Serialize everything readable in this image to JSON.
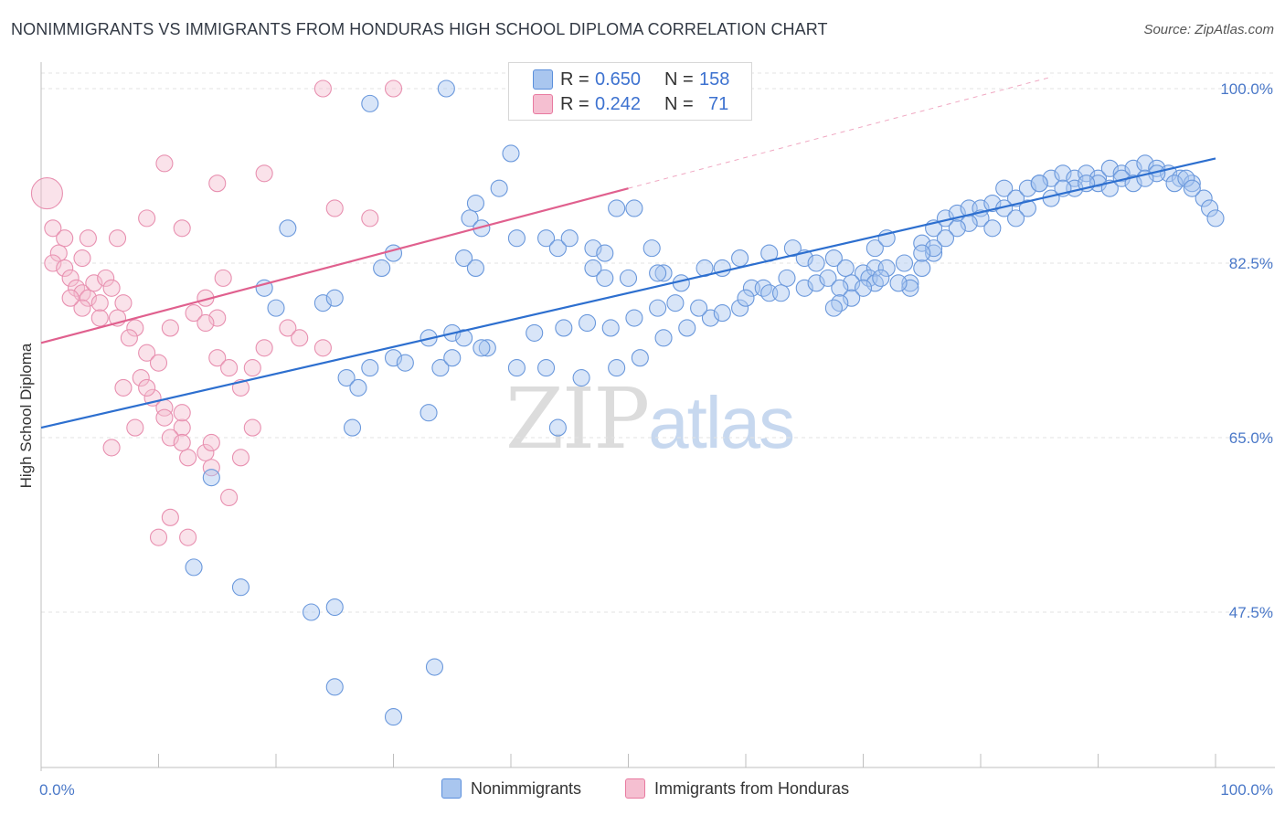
{
  "header": {
    "title": "NONIMMIGRANTS VS IMMIGRANTS FROM HONDURAS HIGH SCHOOL DIPLOMA CORRELATION CHART",
    "source": "Source: ZipAtlas.com"
  },
  "watermark": {
    "zip": "ZIP",
    "atlas": "atlas"
  },
  "legend_top": {
    "rows": [
      {
        "r_label": "R = ",
        "r_value": "0.650",
        "n_label": "N = ",
        "n_value": "158"
      },
      {
        "r_label": "R = ",
        "r_value": "0.242",
        "n_label": "N = ",
        "n_value": "71"
      }
    ]
  },
  "chart_data": {
    "type": "scatter",
    "title": "NONIMMIGRANTS VS IMMIGRANTS FROM HONDURAS HIGH SCHOOL DIPLOMA CORRELATION CHART",
    "xlabel": "",
    "ylabel": "High School Diploma",
    "x_ticks": [
      "0.0%",
      "100.0%"
    ],
    "y_ticks": [
      "100.0%",
      "82.5%",
      "65.0%",
      "47.5%"
    ],
    "y_tick_values": [
      100.0,
      82.5,
      65.0,
      47.5
    ],
    "xlim": [
      0,
      100
    ],
    "ylim": [
      31.5,
      102
    ],
    "grid": true,
    "colors": {
      "blue": "#5b8fdc",
      "blue_fill": "#a9c6ef",
      "pink": "#e87aa0",
      "pink_fill": "#f5bfd1",
      "blue_line": "#2d6fcf",
      "pink_line": "#e0608e"
    },
    "series": [
      {
        "name": "Nonimmigrants",
        "color": "#5b8fdc",
        "R": 0.65,
        "N": 158,
        "trend": {
          "x0": 0,
          "y0": 66.0,
          "x1": 100,
          "y1": 93.0
        },
        "points": [
          [
            34.5,
            100
          ],
          [
            28,
            98.5
          ],
          [
            40,
            93.5
          ],
          [
            39,
            90
          ],
          [
            37,
            88.5
          ],
          [
            36.5,
            87
          ],
          [
            37.5,
            86
          ],
          [
            49,
            88
          ],
          [
            50.5,
            88
          ],
          [
            21,
            86
          ],
          [
            30,
            83.5
          ],
          [
            36,
            83
          ],
          [
            29,
            82
          ],
          [
            37,
            82
          ],
          [
            40.5,
            85
          ],
          [
            43,
            85
          ],
          [
            44,
            84
          ],
          [
            45,
            85
          ],
          [
            47,
            84
          ],
          [
            48,
            83.5
          ],
          [
            52,
            84
          ],
          [
            50,
            81
          ],
          [
            53,
            81.5
          ],
          [
            52.5,
            81.5
          ],
          [
            47,
            82
          ],
          [
            48,
            81
          ],
          [
            54.5,
            80.5
          ],
          [
            56.5,
            82
          ],
          [
            58,
            82
          ],
          [
            59.5,
            83
          ],
          [
            62,
            83.5
          ],
          [
            64,
            84
          ],
          [
            65,
            83
          ],
          [
            66,
            82.5
          ],
          [
            67.5,
            83
          ],
          [
            68.5,
            82
          ],
          [
            70,
            81.5
          ],
          [
            71,
            82
          ],
          [
            69,
            80.5
          ],
          [
            70.5,
            81
          ],
          [
            63.5,
            81
          ],
          [
            60.5,
            80
          ],
          [
            61.5,
            80
          ],
          [
            62,
            79.5
          ],
          [
            63,
            79.5
          ],
          [
            65,
            80
          ],
          [
            66,
            80.5
          ],
          [
            67,
            81
          ],
          [
            68,
            80
          ],
          [
            71,
            80.5
          ],
          [
            72,
            82
          ],
          [
            73.5,
            82.5
          ],
          [
            75,
            82
          ],
          [
            76,
            83.5
          ],
          [
            74,
            80.5
          ],
          [
            74,
            80
          ],
          [
            73,
            80.5
          ],
          [
            71.5,
            81
          ],
          [
            70,
            80
          ],
          [
            69,
            79
          ],
          [
            68,
            78.5
          ],
          [
            67.5,
            78
          ],
          [
            71,
            84
          ],
          [
            72,
            85
          ],
          [
            75,
            84.5
          ],
          [
            76,
            86
          ],
          [
            77,
            87
          ],
          [
            78,
            87.5
          ],
          [
            79,
            88
          ],
          [
            80,
            88
          ],
          [
            81,
            88.5
          ],
          [
            82,
            90
          ],
          [
            83,
            89
          ],
          [
            84,
            90
          ],
          [
            85,
            90.5
          ],
          [
            86,
            91
          ],
          [
            87,
            91.5
          ],
          [
            88,
            91
          ],
          [
            89,
            91.5
          ],
          [
            90,
            91
          ],
          [
            91,
            92
          ],
          [
            92,
            91.5
          ],
          [
            93,
            92
          ],
          [
            94,
            92.5
          ],
          [
            95,
            92
          ],
          [
            96,
            91.5
          ],
          [
            97,
            91
          ],
          [
            98,
            90.5
          ],
          [
            99,
            89
          ],
          [
            99.5,
            88
          ],
          [
            100,
            87
          ],
          [
            86,
            89
          ],
          [
            84,
            88
          ],
          [
            82,
            88
          ],
          [
            80,
            87
          ],
          [
            79,
            86.5
          ],
          [
            78,
            86
          ],
          [
            77,
            85
          ],
          [
            76,
            84
          ],
          [
            75,
            83.5
          ],
          [
            83,
            87
          ],
          [
            81,
            86
          ],
          [
            88,
            90
          ],
          [
            90,
            90.5
          ],
          [
            91,
            90
          ],
          [
            92,
            91
          ],
          [
            93,
            90.5
          ],
          [
            95,
            91.5
          ],
          [
            96.5,
            90.5
          ],
          [
            97.5,
            91
          ],
          [
            98,
            90
          ],
          [
            94,
            91
          ],
          [
            89,
            90.5
          ],
          [
            87,
            90
          ],
          [
            85,
            90.5
          ],
          [
            26,
            71
          ],
          [
            28,
            72
          ],
          [
            30,
            73
          ],
          [
            31,
            72.5
          ],
          [
            27,
            70
          ],
          [
            34,
            72
          ],
          [
            35,
            73
          ],
          [
            38,
            74
          ],
          [
            40.5,
            72
          ],
          [
            43,
            72
          ],
          [
            46,
            71
          ],
          [
            49,
            72
          ],
          [
            51,
            73
          ],
          [
            53,
            75
          ],
          [
            55,
            76
          ],
          [
            57,
            77
          ],
          [
            58,
            77.5
          ],
          [
            59.5,
            78
          ],
          [
            60,
            79
          ],
          [
            20,
            78
          ],
          [
            19,
            80
          ],
          [
            24,
            78.5
          ],
          [
            25,
            79
          ],
          [
            33,
            75
          ],
          [
            35,
            75.5
          ],
          [
            36,
            75
          ],
          [
            37.5,
            74
          ],
          [
            42,
            75.5
          ],
          [
            44.5,
            76
          ],
          [
            46.5,
            76.5
          ],
          [
            48.5,
            76
          ],
          [
            50.5,
            77
          ],
          [
            52.5,
            78
          ],
          [
            54,
            78.5
          ],
          [
            56,
            78
          ],
          [
            33,
            67.5
          ],
          [
            13,
            52
          ],
          [
            17,
            50
          ],
          [
            23,
            47.5
          ],
          [
            25,
            48
          ],
          [
            25,
            40
          ],
          [
            33.5,
            42
          ],
          [
            30,
            37
          ],
          [
            14.5,
            61
          ],
          [
            26.5,
            66
          ],
          [
            44,
            66
          ]
        ]
      },
      {
        "name": "Immigrants from Honduras",
        "color": "#e87aa0",
        "R": 0.242,
        "N": 71,
        "trend": {
          "x0": 0,
          "y0": 74.5,
          "x1": 50,
          "y1": 90.0
        },
        "points": [
          [
            0.5,
            89.5
          ],
          [
            1,
            86
          ],
          [
            2,
            85
          ],
          [
            1.5,
            83.5
          ],
          [
            1,
            82.5
          ],
          [
            2,
            82
          ],
          [
            2.5,
            81
          ],
          [
            3,
            80
          ],
          [
            3.5,
            79.5
          ],
          [
            4,
            79
          ],
          [
            5,
            78.5
          ],
          [
            3.5,
            78
          ],
          [
            4.5,
            80.5
          ],
          [
            2.5,
            79
          ],
          [
            3.5,
            83
          ],
          [
            4,
            85
          ],
          [
            5.5,
            81
          ],
          [
            6,
            80
          ],
          [
            7,
            78.5
          ],
          [
            6.5,
            77
          ],
          [
            5,
            77
          ],
          [
            8,
            76
          ],
          [
            7.5,
            75
          ],
          [
            9,
            73.5
          ],
          [
            10,
            72.5
          ],
          [
            8.5,
            71
          ],
          [
            7,
            70
          ],
          [
            9.5,
            69
          ],
          [
            10.5,
            68
          ],
          [
            12,
            66
          ],
          [
            11,
            65
          ],
          [
            12.5,
            63
          ],
          [
            14,
            63.5
          ],
          [
            8,
            66
          ],
          [
            6,
            64
          ],
          [
            12,
            64.5
          ],
          [
            14.5,
            62
          ],
          [
            10,
            55
          ],
          [
            11,
            57
          ],
          [
            12.5,
            55
          ],
          [
            16,
            59
          ],
          [
            17,
            63
          ],
          [
            9,
            70
          ],
          [
            10.5,
            67
          ],
          [
            12,
            67.5
          ],
          [
            11,
            76
          ],
          [
            13,
            77.5
          ],
          [
            14,
            79
          ],
          [
            15,
            77
          ],
          [
            15.5,
            81
          ],
          [
            14,
            76.5
          ],
          [
            15,
            73
          ],
          [
            16,
            72
          ],
          [
            17,
            70
          ],
          [
            18,
            72
          ],
          [
            19,
            74
          ],
          [
            18,
            66
          ],
          [
            14.5,
            64.5
          ],
          [
            21,
            76
          ],
          [
            22,
            75
          ],
          [
            24,
            74
          ],
          [
            10.5,
            92.5
          ],
          [
            15,
            90.5
          ],
          [
            19,
            91.5
          ],
          [
            28,
            87
          ],
          [
            30,
            100
          ],
          [
            24,
            100
          ],
          [
            25,
            88
          ],
          [
            12,
            86
          ],
          [
            9,
            87
          ],
          [
            6.5,
            85
          ]
        ]
      }
    ]
  },
  "legend_bottom": {
    "items": [
      {
        "label": "Nonimmigrants"
      },
      {
        "label": "Immigrants from Honduras"
      }
    ]
  }
}
